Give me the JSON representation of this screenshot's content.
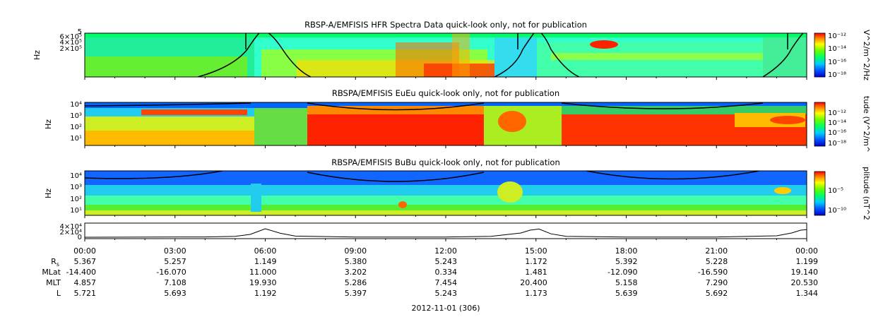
{
  "chart_data": [
    {
      "type": "heatmap",
      "title": "RBSP-A/EMFISIS  HFR Spectra Data quick-look only, not for publication",
      "ylabel": "Hz",
      "yticks": [
        "2×10⁵",
        "4×10⁵",
        "6×10⁵",
        "5"
      ],
      "colorbar_label": "V^2/m^2/Hz",
      "colorbar_ticks": [
        "10⁻¹²",
        "10⁻¹⁴",
        "10⁻¹⁶",
        "10⁻¹⁸"
      ],
      "scale": "log",
      "colors": [
        "#0000cc",
        "#00ccff",
        "#00ff66",
        "#ffff00",
        "#ff0000"
      ]
    },
    {
      "type": "heatmap",
      "title": "RBSPA/EMFISIS  EuEu quick-look only, not for publication",
      "ylabel": "Hz",
      "yticks": [
        "10¹",
        "10²",
        "10³",
        "10⁴"
      ],
      "colorbar_label": "tude (V^2/m^",
      "colorbar_ticks": [
        "10⁻¹²",
        "10⁻¹⁴",
        "10⁻¹⁶",
        "10⁻¹⁸"
      ],
      "scale": "log"
    },
    {
      "type": "heatmap",
      "title": "RBSPA/EMFISIS  BuBu quick-look only, not for publication",
      "ylabel": "Hz",
      "yticks": [
        "10¹",
        "10²",
        "10³",
        "10⁴"
      ],
      "colorbar_label": "plitude (nT^2",
      "colorbar_ticks": [
        "10⁻⁵",
        "10⁻¹⁰"
      ],
      "scale": "log"
    },
    {
      "type": "line",
      "title": "",
      "yticks": [
        "0",
        "2×10⁴",
        "4×10⁴"
      ],
      "x_hours": [
        0,
        4,
        5,
        5.5,
        5.75,
        6,
        6.5,
        7,
        9,
        12,
        13.5,
        14.5,
        14.8,
        15.1,
        15.5,
        16,
        18,
        21,
        23,
        23.5,
        23.8,
        24
      ],
      "y": [
        100,
        1000,
        3000,
        10000,
        20000,
        30000,
        14000,
        4000,
        800,
        800,
        3000,
        15000,
        25000,
        29000,
        12000,
        3000,
        800,
        800,
        5000,
        15000,
        25000,
        27000
      ],
      "ylim": [
        0,
        45000
      ]
    }
  ],
  "time_axis": {
    "ticks": [
      "00:00",
      "03:00",
      "06:00",
      "09:00",
      "12:00",
      "15:00",
      "18:00",
      "21:00",
      "00:00"
    ],
    "date_label": "2012-11-01 (306)"
  },
  "ephemeris": {
    "labels": [
      "R",
      "MLat",
      "MLT",
      "L"
    ],
    "r_subscript": "s",
    "rows": [
      [
        "5.367",
        "5.257",
        "1.149",
        "5.380",
        "5.243",
        "1.172",
        "5.392",
        "5.228",
        "1.199"
      ],
      [
        "-14.400",
        "-16.070",
        "11.000",
        "3.202",
        "0.334",
        "1.481",
        "-12.090",
        "-16.590",
        "19.140"
      ],
      [
        "4.857",
        "7.108",
        "19.930",
        "5.286",
        "7.454",
        "20.400",
        "5.158",
        "7.290",
        "20.530"
      ],
      [
        "5.721",
        "5.693",
        "1.192",
        "5.397",
        "5.243",
        "1.173",
        "5.639",
        "5.692",
        "1.344"
      ]
    ]
  }
}
